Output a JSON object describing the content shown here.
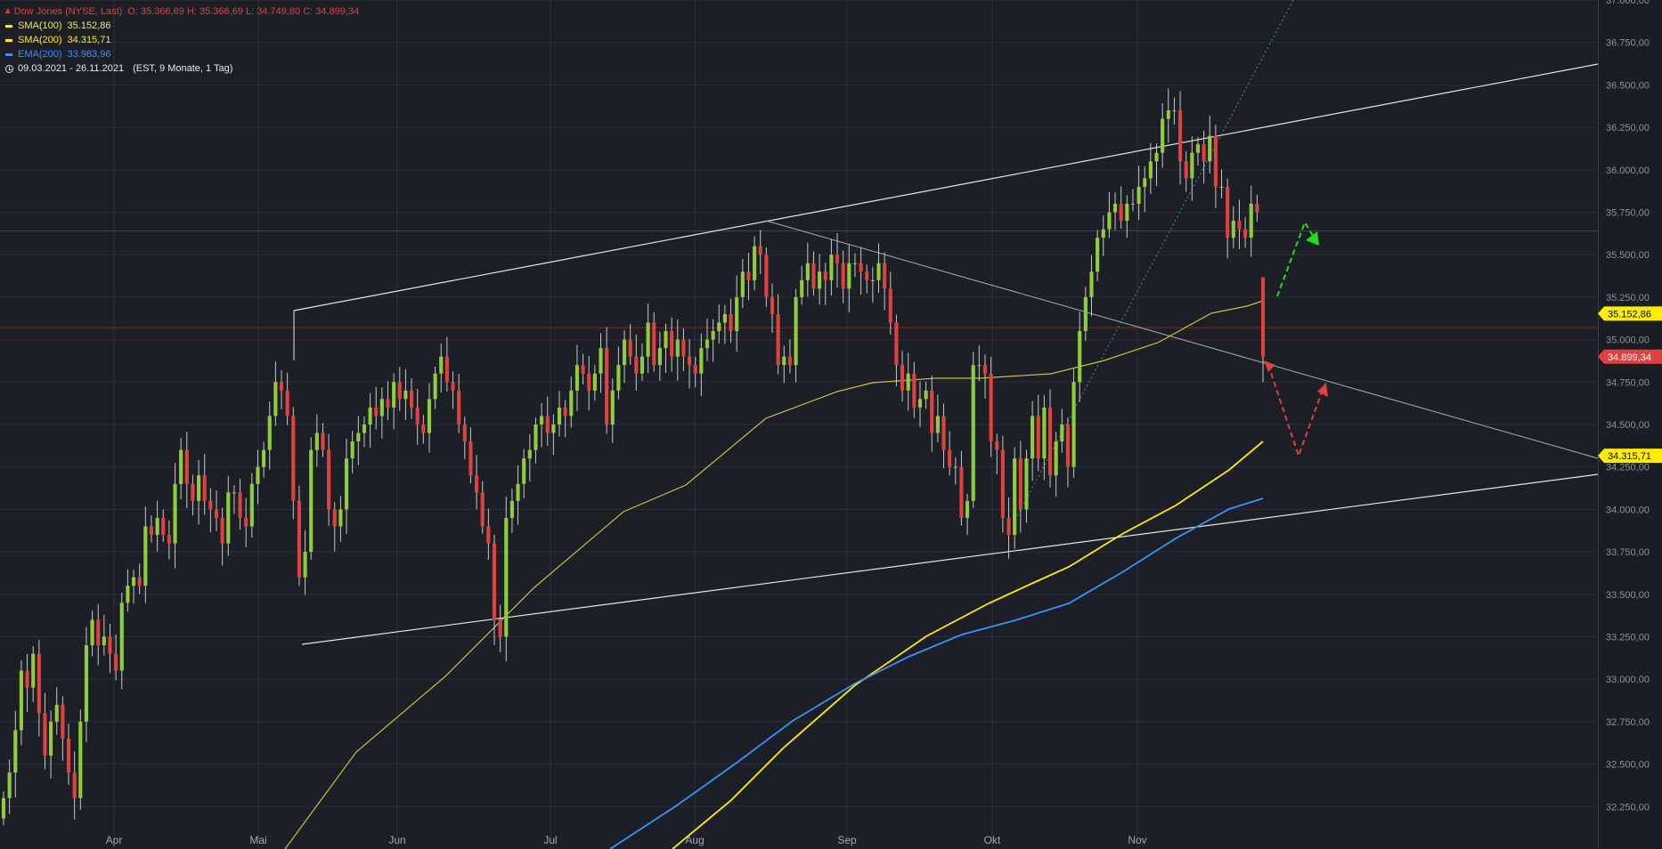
{
  "header": {
    "title": "Dow Jones (NYSE, Last)",
    "ohlc": "O: 35.366,69  H: 35.366,69  L: 34.749,80  C: 34.899,34",
    "indicators": [
      {
        "label": "SMA(100)",
        "value": "35.152,86",
        "color": "#f2e94e"
      },
      {
        "label": "SMA(200)",
        "value": "34.315,71",
        "color": "#ffee00"
      },
      {
        "label": "EMA(200)",
        "value": "33.983,96",
        "color": "#3794ff"
      }
    ],
    "range": "09.03.2021 - 26.11.2021",
    "range_meta": "(EST, 9 Monate, 1 Tag)"
  },
  "chart_data": {
    "type": "candlestick",
    "x_axis": {
      "labels": [
        "Apr",
        "Mai",
        "Jun",
        "Jul",
        "Aug",
        "Sep",
        "Okt",
        "Nov"
      ]
    },
    "y_axis": {
      "ylim": [
        32000,
        37000
      ],
      "ticks": [
        32250,
        32500,
        32750,
        33000,
        33250,
        33500,
        33750,
        34000,
        34250,
        34500,
        34750,
        35000,
        35250,
        35500,
        35750,
        36000,
        36250,
        36500,
        36750,
        37000
      ],
      "tick_labels": [
        "32.250,00",
        "32.500,00",
        "32.750,00",
        "33.000,00",
        "33.250,00",
        "33.500,00",
        "33.750,00",
        "34.000,00",
        "34.250,00",
        "34.500,00",
        "34.750,00",
        "35.000,00",
        "35.250,00",
        "35.500,00",
        "35.750,00",
        "36.000,00",
        "36.250,00",
        "36.500,00",
        "36.750,00",
        "37.000,00"
      ],
      "badges": [
        {
          "label": "35.152,86",
          "value": 35152.86,
          "color": "#ffee00",
          "text_color": "#000000"
        },
        {
          "label": "34.899,34",
          "value": 34899.34,
          "color": "#e0403f",
          "text_color": "#ffffff"
        },
        {
          "label": "34.315,71",
          "value": 34315.71,
          "color": "#ffee00",
          "text_color": "#000000"
        }
      ]
    },
    "candle_colors": {
      "up": "#8fce3a",
      "down": "#e0403f"
    },
    "closes": [
      32300,
      32450,
      32700,
      33050,
      32950,
      33150,
      32800,
      32550,
      32750,
      32850,
      32650,
      32450,
      32300,
      32750,
      33200,
      33350,
      33200,
      33250,
      33150,
      33050,
      33450,
      33550,
      33600,
      33550,
      33900,
      33850,
      33950,
      33850,
      33800,
      34150,
      34350,
      34150,
      34050,
      34200,
      34050,
      34000,
      33950,
      33800,
      34100,
      34100,
      33950,
      33900,
      34150,
      34250,
      34350,
      34550,
      34750,
      34700,
      34550,
      34050,
      33600,
      33750,
      34350,
      34450,
      34350,
      34000,
      33900,
      34000,
      34300,
      34400,
      34450,
      34500,
      34600,
      34550,
      34650,
      34600,
      34750,
      34650,
      34700,
      34600,
      34500,
      34450,
      34650,
      34800,
      34900,
      34750,
      34700,
      34500,
      34400,
      34200,
      34100,
      33900,
      33800,
      33350,
      33250,
      33950,
      34050,
      34150,
      34300,
      34350,
      34500,
      34550,
      34450,
      34500,
      34600,
      34550,
      34700,
      34850,
      34800,
      34700,
      34800,
      34950,
      34500,
      34700,
      34850,
      35000,
      34900,
      34800,
      34900,
      35100,
      34850,
      34950,
      35050,
      34900,
      35000,
      34900,
      34850,
      34800,
      34950,
      35000,
      35050,
      35100,
      35150,
      35050,
      35250,
      35400,
      35350,
      35550,
      35500,
      35250,
      35150,
      34850,
      34900,
      34850,
      35250,
      35350,
      35450,
      35300,
      35400,
      35350,
      35500,
      35450,
      35300,
      35450,
      35450,
      35400,
      35350,
      35350,
      35450,
      35300,
      35100,
      34850,
      34700,
      34800,
      34600,
      34650,
      34700,
      34450,
      34550,
      34350,
      34250,
      34250,
      33950,
      34050,
      34850,
      34850,
      34800,
      34400,
      34350,
      33950,
      33850,
      34300,
      34000,
      34300,
      34550,
      34300,
      34600,
      34200,
      34400,
      34500,
      34250,
      34750,
      35050,
      35250,
      35400,
      35600,
      35650,
      35750,
      35800,
      35700,
      35800,
      35800,
      35900,
      35950,
      36050,
      36100,
      36300,
      36350,
      36350,
      36050,
      35950,
      36100,
      36150,
      36050,
      36200,
      35900,
      35900,
      35600,
      35700,
      35650,
      35600,
      35800,
      35750,
      34900
    ]
  },
  "annotations": {
    "up_arrow_color": "#22dd22",
    "down_arrow_color": "#e0403f"
  }
}
